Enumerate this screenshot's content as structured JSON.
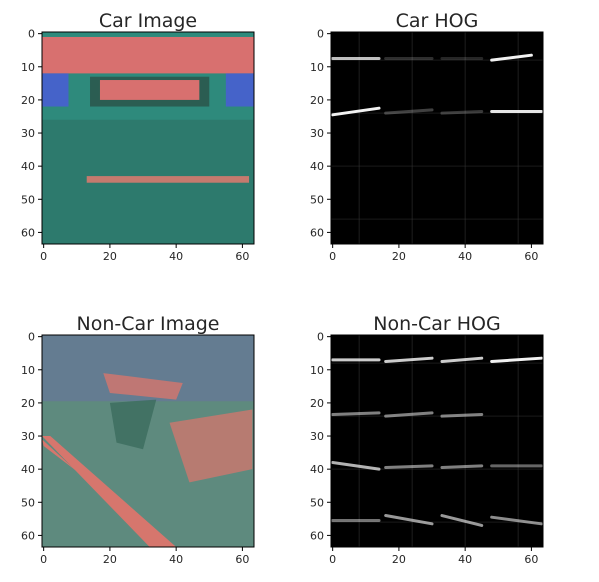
{
  "chart_data": [
    {
      "type": "heatmap",
      "title": "Car Image",
      "image_shape": [
        64,
        64
      ],
      "xlim": [
        0,
        63
      ],
      "ylim": [
        63,
        0
      ],
      "xticks": [
        0,
        20,
        40,
        60
      ],
      "yticks": [
        0,
        10,
        20,
        30,
        40,
        50,
        60
      ],
      "grid": false,
      "content": "color",
      "colors": {
        "body": "#2e8a7c",
        "red_band": "#d8706f",
        "blue": "#4563c9",
        "dark": "#2b5d52",
        "stripe": "#c57a6e"
      }
    },
    {
      "type": "heatmap",
      "title": "Car HOG",
      "image_shape": [
        64,
        64
      ],
      "xlim": [
        0,
        63
      ],
      "ylim": [
        63,
        0
      ],
      "xticks": [
        0,
        20,
        40,
        60
      ],
      "yticks": [
        0,
        10,
        20,
        30,
        40,
        50,
        60
      ],
      "grid": false,
      "content": "hog",
      "hog_lines": [
        [
          0,
          7.5,
          14,
          7.5,
          0.75
        ],
        [
          48,
          8,
          60,
          6.5,
          0.95
        ],
        [
          0,
          24.5,
          14,
          22.5,
          0.95
        ],
        [
          48,
          23.5,
          63,
          23.5,
          0.9
        ],
        [
          16,
          24,
          30,
          23,
          0.25
        ],
        [
          33,
          24,
          45,
          23.5,
          0.22
        ],
        [
          16,
          7.5,
          30,
          7.5,
          0.18
        ],
        [
          33,
          7.5,
          45,
          7.5,
          0.15
        ]
      ]
    },
    {
      "type": "heatmap",
      "title": "Non-Car Image",
      "image_shape": [
        64,
        64
      ],
      "xlim": [
        0,
        63
      ],
      "ylim": [
        63,
        0
      ],
      "xticks": [
        0,
        20,
        40,
        60
      ],
      "yticks": [
        0,
        10,
        20,
        30,
        40,
        50,
        60
      ],
      "grid": false,
      "content": "color",
      "colors": {
        "body": "#5e8a7e",
        "red_band": "#d6766d",
        "blue": "#6d6aa8",
        "dark": "#3b6b5e",
        "stripe": "#b77a76"
      }
    },
    {
      "type": "heatmap",
      "title": "Non-Car HOG",
      "image_shape": [
        64,
        64
      ],
      "xlim": [
        0,
        63
      ],
      "ylim": [
        63,
        0
      ],
      "xticks": [
        0,
        20,
        40,
        60
      ],
      "yticks": [
        0,
        10,
        20,
        30,
        40,
        50,
        60
      ],
      "grid": false,
      "content": "hog",
      "hog_lines": [
        [
          0,
          7,
          14,
          7,
          0.8
        ],
        [
          16,
          7.5,
          30,
          6.5,
          0.8
        ],
        [
          33,
          7.5,
          45,
          6.5,
          0.8
        ],
        [
          48,
          7.5,
          63,
          6.5,
          0.95
        ],
        [
          0,
          23.5,
          14,
          23,
          0.5
        ],
        [
          16,
          24,
          30,
          23,
          0.5
        ],
        [
          33,
          24,
          45,
          23.5,
          0.5
        ],
        [
          0,
          38,
          14,
          40,
          0.7
        ],
        [
          16,
          39.5,
          30,
          39,
          0.5
        ],
        [
          33,
          39.5,
          45,
          39,
          0.5
        ],
        [
          48,
          39,
          63,
          39,
          0.4
        ],
        [
          0,
          55.5,
          14,
          55.5,
          0.45
        ],
        [
          16,
          54,
          30,
          56.5,
          0.6
        ],
        [
          33,
          54,
          45,
          57,
          0.6
        ],
        [
          48,
          54.5,
          63,
          56.5,
          0.55
        ]
      ]
    }
  ]
}
